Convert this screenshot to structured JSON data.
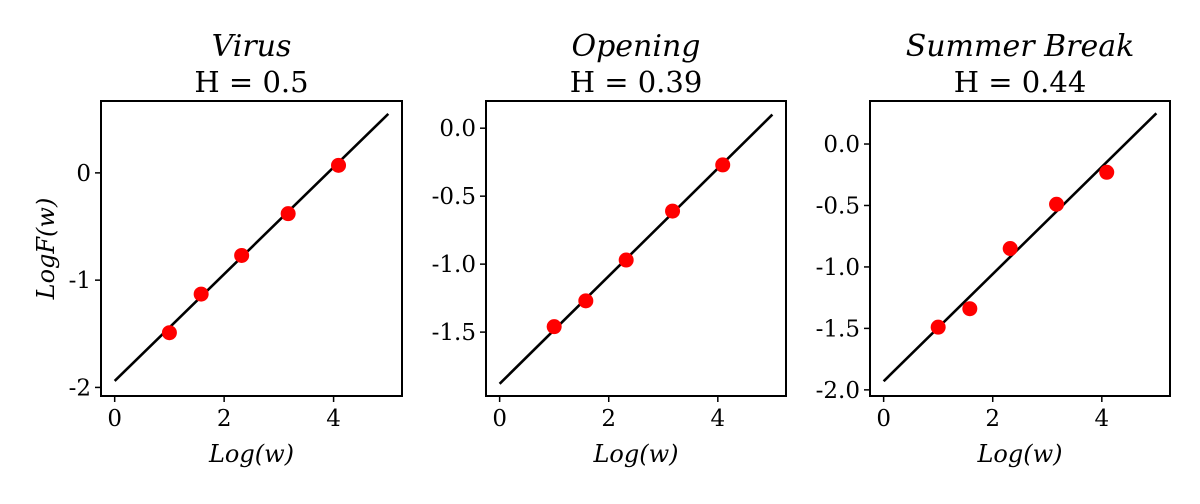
{
  "figure": {
    "background": "#ffffff",
    "point_color": "#ff0000",
    "line_color": "#000000"
  },
  "chart_data": [
    {
      "type": "scatter",
      "title": "Virus",
      "subtitle": "H = 0.5",
      "xlabel": "Log(w)",
      "ylabel": "LogF(w)",
      "xlim": [
        -0.25,
        5.25
      ],
      "ylim": [
        -2.08,
        0.67
      ],
      "xticks": [
        0,
        2,
        4
      ],
      "xtick_labels": [
        "0",
        "2",
        "4"
      ],
      "yticks": [
        0,
        -1,
        -2
      ],
      "ytick_labels": [
        "0",
        "-1",
        "-2"
      ],
      "grid": false,
      "points": [
        {
          "x": 1.0,
          "y": -1.49
        },
        {
          "x": 1.58,
          "y": -1.13
        },
        {
          "x": 2.32,
          "y": -0.77
        },
        {
          "x": 3.17,
          "y": -0.38
        },
        {
          "x": 4.09,
          "y": 0.07
        }
      ],
      "fit_line": {
        "x": [
          0,
          5
        ],
        "y": [
          -1.94,
          0.55
        ]
      }
    },
    {
      "type": "scatter",
      "title": "Opening",
      "subtitle": "H = 0.39",
      "xlabel": "Log(w)",
      "ylabel": "",
      "xlim": [
        -0.25,
        5.25
      ],
      "ylim": [
        -1.97,
        0.2
      ],
      "xticks": [
        0,
        2,
        4
      ],
      "xtick_labels": [
        "0",
        "2",
        "4"
      ],
      "yticks": [
        0,
        -0.5,
        -1,
        -1.5
      ],
      "ytick_labels": [
        "0.0",
        "-0.5",
        "-1.0",
        "-1.5"
      ],
      "grid": false,
      "points": [
        {
          "x": 1.0,
          "y": -1.46
        },
        {
          "x": 1.58,
          "y": -1.27
        },
        {
          "x": 2.32,
          "y": -0.97
        },
        {
          "x": 3.17,
          "y": -0.61
        },
        {
          "x": 4.09,
          "y": -0.27
        }
      ],
      "fit_line": {
        "x": [
          0,
          5
        ],
        "y": [
          -1.88,
          0.1
        ]
      }
    },
    {
      "type": "scatter",
      "title": "Summer Break",
      "subtitle": "H = 0.44",
      "xlabel": "Log(w)",
      "ylabel": "",
      "xlim": [
        -0.25,
        5.25
      ],
      "ylim": [
        -2.05,
        0.35
      ],
      "xticks": [
        0,
        2,
        4
      ],
      "xtick_labels": [
        "0",
        "2",
        "4"
      ],
      "yticks": [
        0,
        -0.5,
        -1,
        -1.5,
        -2
      ],
      "ytick_labels": [
        "0.0",
        "-0.5",
        "-1.0",
        "-1.5",
        "-2.0"
      ],
      "grid": false,
      "points": [
        {
          "x": 1.0,
          "y": -1.49
        },
        {
          "x": 1.58,
          "y": -1.34
        },
        {
          "x": 2.32,
          "y": -0.85
        },
        {
          "x": 3.17,
          "y": -0.49
        },
        {
          "x": 4.09,
          "y": -0.23
        }
      ],
      "fit_line": {
        "x": [
          0,
          5
        ],
        "y": [
          -1.93,
          0.25
        ]
      }
    }
  ]
}
